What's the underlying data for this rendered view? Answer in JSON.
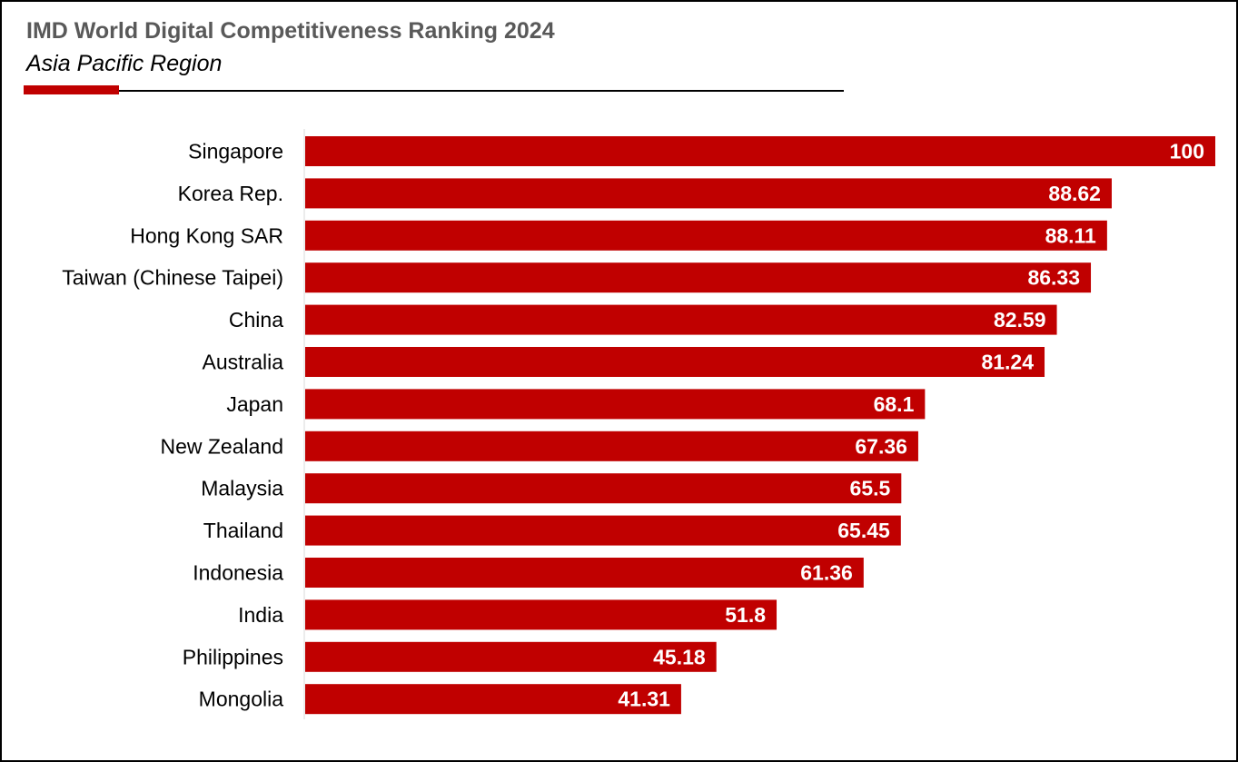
{
  "chart_data": {
    "type": "bar",
    "orientation": "horizontal",
    "title": "IMD World Digital Competitiveness Ranking 2024",
    "subtitle": "Asia Pacific Region",
    "categories": [
      "Singapore",
      "Korea Rep.",
      "Hong Kong SAR",
      "Taiwan (Chinese Taipei)",
      "China",
      "Australia",
      "Japan",
      "New Zealand",
      "Malaysia",
      "Thailand",
      "Indonesia",
      "India",
      "Philippines",
      "Mongolia"
    ],
    "values": [
      100,
      88.62,
      88.11,
      86.33,
      82.59,
      81.24,
      68.1,
      67.36,
      65.5,
      65.45,
      61.36,
      51.8,
      45.18,
      41.31
    ],
    "value_labels": [
      "100",
      "88.62",
      "88.11",
      "86.33",
      "82.59",
      "81.24",
      "68.1",
      "67.36",
      "65.5",
      "65.45",
      "61.36",
      "51.8",
      "45.18",
      "41.31"
    ],
    "xlim": [
      0,
      100
    ],
    "grid": false,
    "legend": "none",
    "bar_color": "#c00000",
    "title_color": "#595959",
    "accent_color": "#c00000"
  }
}
